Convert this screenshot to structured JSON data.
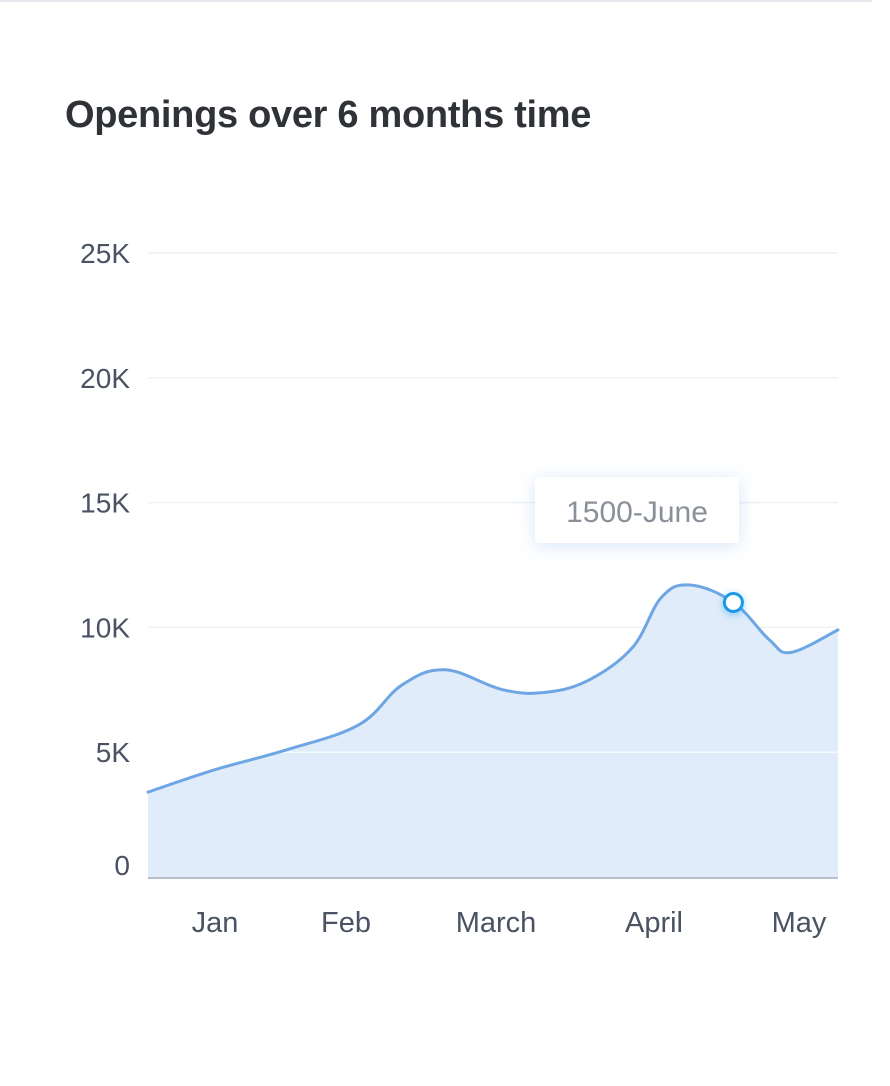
{
  "chart_data": {
    "type": "area",
    "title": "Openings over 6 months time",
    "categories": [
      "Jan",
      "Feb",
      "March",
      "April",
      "May"
    ],
    "y_ticks": [
      "25K",
      "20K",
      "15K",
      "10K",
      "5K",
      "0"
    ],
    "ylim": [
      0,
      25000
    ],
    "grid": true,
    "legend": "none",
    "series": [
      {
        "x": [
          -0.5,
          0.0,
          0.5,
          1.0,
          1.3,
          1.6,
          2.0,
          2.3,
          2.6,
          2.9,
          3.1,
          3.3,
          3.6,
          3.85,
          4.0,
          4.25
        ],
        "y": [
          3400,
          4300,
          5100,
          6100,
          7700,
          8300,
          7500,
          7400,
          7900,
          9200,
          11200,
          11700,
          11000,
          9500,
          9000,
          9900
        ]
      }
    ],
    "tooltip": {
      "label": "1500-June",
      "point": {
        "x": 3.6,
        "y": 11000
      }
    },
    "colors": {
      "line": "#6ea6e4",
      "fill": "#deebfa",
      "marker_stroke": "#1a98e6",
      "grid": "#eef1f5",
      "baseline": "#b9c0ca",
      "axis_text": "#4a5263",
      "title": "#2f3237"
    }
  }
}
